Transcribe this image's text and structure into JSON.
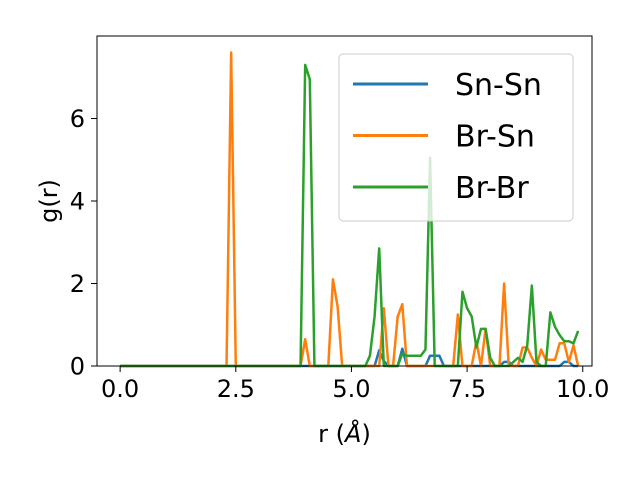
{
  "chart_data": {
    "type": "line",
    "title": "",
    "xlabel": "r ($\\AA$)",
    "xlabel_parts": {
      "prefix": "r (",
      "unit": "Å",
      "suffix": ")"
    },
    "ylabel": "g(r)",
    "xlim": [
      -0.5,
      10.2
    ],
    "ylim": [
      0,
      8.0
    ],
    "xticks": [
      0.0,
      2.5,
      5.0,
      7.5,
      10.0
    ],
    "xtick_labels": [
      "0.0",
      "2.5",
      "5.0",
      "7.5",
      "10.0"
    ],
    "yticks": [
      0,
      2,
      4,
      6
    ],
    "ytick_labels": [
      "0",
      "2",
      "4",
      "6"
    ],
    "grid": false,
    "legend_position": "upper right",
    "x": [
      0.0,
      0.1,
      0.2,
      0.3,
      0.4,
      0.5,
      0.6,
      0.7,
      0.8,
      0.9,
      1.0,
      1.1,
      1.2,
      1.3,
      1.4,
      1.5,
      1.6,
      1.7,
      1.8,
      1.9,
      2.0,
      2.1,
      2.2,
      2.3,
      2.4,
      2.5,
      2.6,
      2.7,
      2.8,
      2.9,
      3.0,
      3.1,
      3.2,
      3.3,
      3.4,
      3.5,
      3.6,
      3.7,
      3.8,
      3.9,
      4.0,
      4.1,
      4.2,
      4.3,
      4.4,
      4.5,
      4.6,
      4.7,
      4.8,
      4.9,
      5.0,
      5.1,
      5.2,
      5.3,
      5.4,
      5.5,
      5.6,
      5.7,
      5.8,
      5.9,
      6.0,
      6.1,
      6.2,
      6.3,
      6.4,
      6.5,
      6.6,
      6.7,
      6.8,
      6.9,
      7.0,
      7.1,
      7.2,
      7.3,
      7.4,
      7.5,
      7.6,
      7.7,
      7.8,
      7.9,
      8.0,
      8.1,
      8.2,
      8.3,
      8.4,
      8.5,
      8.6,
      8.7,
      8.8,
      8.9,
      9.0,
      9.1,
      9.2,
      9.3,
      9.4,
      9.5,
      9.6,
      9.7,
      9.8,
      9.9
    ],
    "series": [
      {
        "name": "Sn-Sn",
        "color": "#1f77b4",
        "values": [
          0,
          0,
          0,
          0,
          0,
          0,
          0,
          0,
          0,
          0,
          0,
          0,
          0,
          0,
          0,
          0,
          0,
          0,
          0,
          0,
          0,
          0,
          0,
          0,
          0,
          0,
          0,
          0,
          0,
          0,
          0,
          0,
          0,
          0,
          0,
          0,
          0,
          0,
          0,
          0,
          0,
          0,
          0,
          0,
          0,
          0,
          0,
          0,
          0,
          0,
          0,
          0,
          0,
          0,
          0,
          0,
          0.38,
          0.12,
          0,
          0,
          0,
          0.42,
          0,
          0,
          0,
          0,
          0,
          0.25,
          0.25,
          0.25,
          0,
          0,
          0,
          0,
          0,
          0,
          0,
          0,
          0,
          0,
          0,
          0,
          0,
          0.1,
          0.1,
          0,
          0,
          0,
          0,
          0,
          0,
          0,
          0,
          0,
          0,
          0,
          0.1,
          0.1,
          0,
          0
        ]
      },
      {
        "name": "Br-Sn",
        "color": "#ff7f0e",
        "values": [
          0,
          0,
          0,
          0,
          0,
          0,
          0,
          0,
          0,
          0,
          0,
          0,
          0,
          0,
          0,
          0,
          0,
          0,
          0,
          0,
          0,
          0,
          0,
          0,
          7.6,
          0,
          0,
          0,
          0,
          0,
          0,
          0,
          0,
          0,
          0,
          0,
          0,
          0,
          0,
          0,
          0.65,
          0,
          0,
          0,
          0,
          0,
          2.1,
          1.45,
          0,
          0,
          0,
          0,
          0,
          0,
          0,
          0,
          0,
          1.4,
          0,
          0,
          1.2,
          1.5,
          0,
          0,
          0,
          0,
          0,
          0,
          0,
          0,
          0,
          0,
          0,
          1.25,
          0,
          0,
          0,
          0.6,
          0,
          0.9,
          0,
          0,
          0,
          2.0,
          0,
          0,
          0,
          0.45,
          0.45,
          0.2,
          0,
          0.4,
          0.15,
          0.15,
          0.15,
          0.55,
          0.55,
          0.1,
          0.5,
          0
        ]
      },
      {
        "name": "Br-Br",
        "color": "#2ca02c",
        "values": [
          0,
          0,
          0,
          0,
          0,
          0,
          0,
          0,
          0,
          0,
          0,
          0,
          0,
          0,
          0,
          0,
          0,
          0,
          0,
          0,
          0,
          0,
          0,
          0,
          0,
          0,
          0,
          0,
          0,
          0,
          0,
          0,
          0,
          0,
          0,
          0,
          0,
          0,
          0,
          0,
          7.3,
          6.95,
          0,
          0,
          0,
          0,
          0,
          0,
          0,
          0,
          0,
          0,
          0,
          0,
          0.25,
          1.2,
          2.85,
          0,
          0,
          0,
          0,
          0.3,
          0.25,
          0.25,
          0.25,
          0.25,
          0.4,
          5.05,
          0,
          0,
          0,
          0,
          0,
          0,
          1.8,
          1.4,
          1.2,
          0.45,
          0.9,
          0.9,
          0.2,
          0,
          0,
          0,
          0,
          0.1,
          0.2,
          0.1,
          0.5,
          1.95,
          0.1,
          0,
          0,
          1.3,
          0.95,
          0.75,
          0.6,
          0.6,
          0.55,
          0.85
        ]
      }
    ]
  }
}
